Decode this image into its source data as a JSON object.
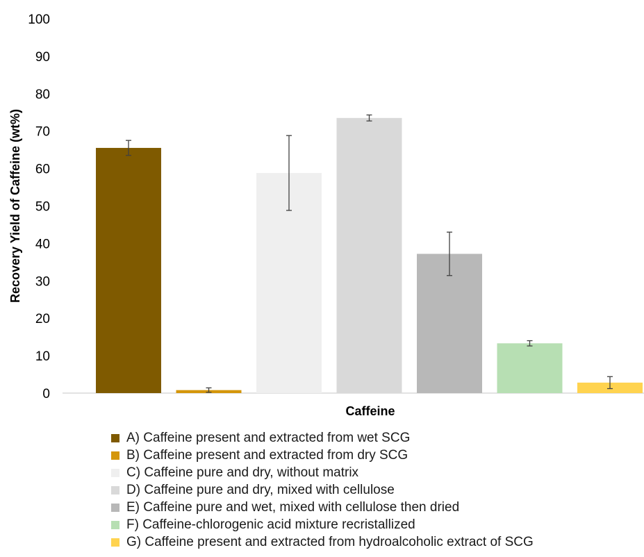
{
  "chart_data": {
    "type": "bar",
    "title": "",
    "xlabel": "Caffeine",
    "ylabel": "Recovery Yield of Caffeine (wt%)",
    "ylim": [
      0,
      100
    ],
    "yticks": [
      0,
      10,
      20,
      30,
      40,
      50,
      60,
      70,
      80,
      90,
      100
    ],
    "grid": false,
    "legend_position": "bottom",
    "categories": [
      "Caffeine"
    ],
    "series": [
      {
        "name": "A) Caffeine present and extracted from wet SCG",
        "value": 65.5,
        "error": 2.0,
        "color": "#7f5a00"
      },
      {
        "name": "B) Caffeine present and extracted from dry SCG",
        "value": 0.8,
        "error": 0.6,
        "color": "#d4960b"
      },
      {
        "name": "C) Caffeine pure and dry, without matrix",
        "value": 58.8,
        "error": 10.0,
        "color": "#efefef"
      },
      {
        "name": "D) Caffeine pure and dry, mixed with cellulose",
        "value": 73.5,
        "error": 0.8,
        "color": "#d9d9d9"
      },
      {
        "name": "E) Caffeine pure and wet, mixed with cellulose then dried",
        "value": 37.2,
        "error": 5.8,
        "color": "#b8b8b8"
      },
      {
        "name": "F) Caffeine-chlorogenic acid mixture recristallized",
        "value": 13.3,
        "error": 0.7,
        "color": "#b7dfb3"
      },
      {
        "name": "G) Caffeine present and extracted from hydroalcoholic extract of SCG",
        "value": 2.8,
        "error": 1.6,
        "color": "#ffd34f"
      }
    ]
  }
}
